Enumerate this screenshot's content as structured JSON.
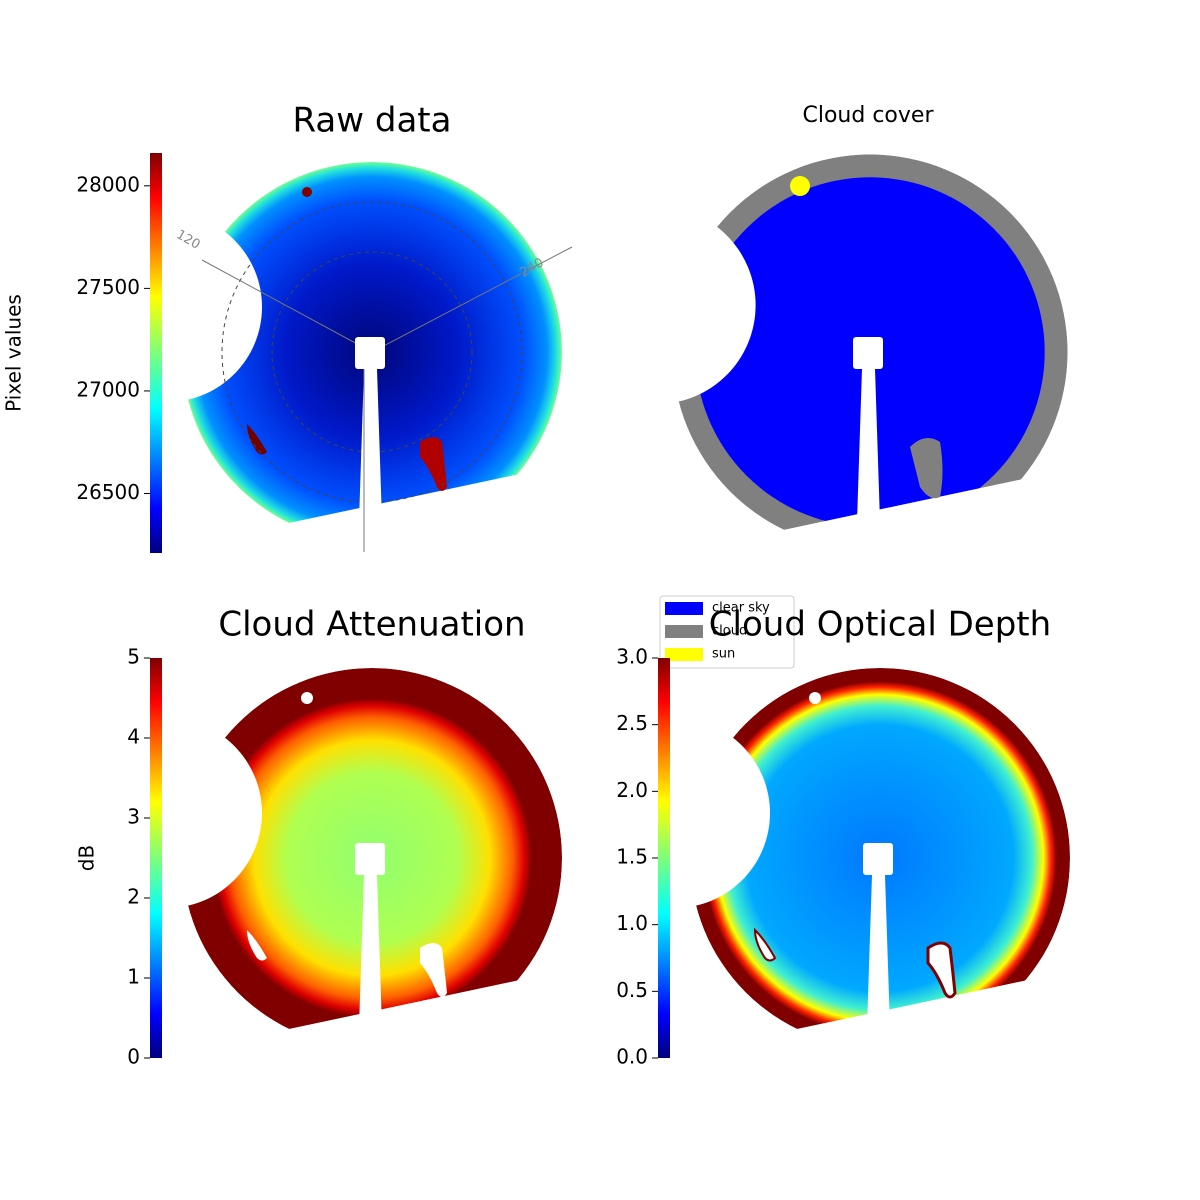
{
  "chart_data": [
    {
      "type": "image",
      "title": "Raw data",
      "colorbar": {
        "label": "Pixel values",
        "ylim": [
          26210,
          28160
        ],
        "yticks": [
          26500,
          27000,
          27500,
          28000
        ]
      },
      "annotations": [
        "120",
        "240"
      ]
    },
    {
      "type": "image",
      "title": "Cloud cover",
      "legend": [
        {
          "name": "clear sky",
          "color": "#0000ff"
        },
        {
          "name": "cloud",
          "color": "#808080"
        },
        {
          "name": "sun",
          "color": "#ffff00"
        }
      ]
    },
    {
      "type": "image",
      "title": "Cloud Attenuation",
      "colorbar": {
        "label": "dB",
        "ylim": [
          0,
          5
        ],
        "yticks": [
          0,
          1,
          2,
          3,
          4,
          5
        ]
      }
    },
    {
      "type": "image",
      "title": "Cloud Optical Depth",
      "colorbar": {
        "ylim": [
          0,
          3
        ],
        "yticks": [
          {
            "value": 0,
            "label": "0.0"
          },
          0.5,
          {
            "value": 1,
            "label": "1.0"
          },
          1.5,
          {
            "value": 2,
            "label": "2.0"
          },
          2.5,
          {
            "value": 3,
            "label": "3.0"
          }
        ]
      }
    }
  ]
}
